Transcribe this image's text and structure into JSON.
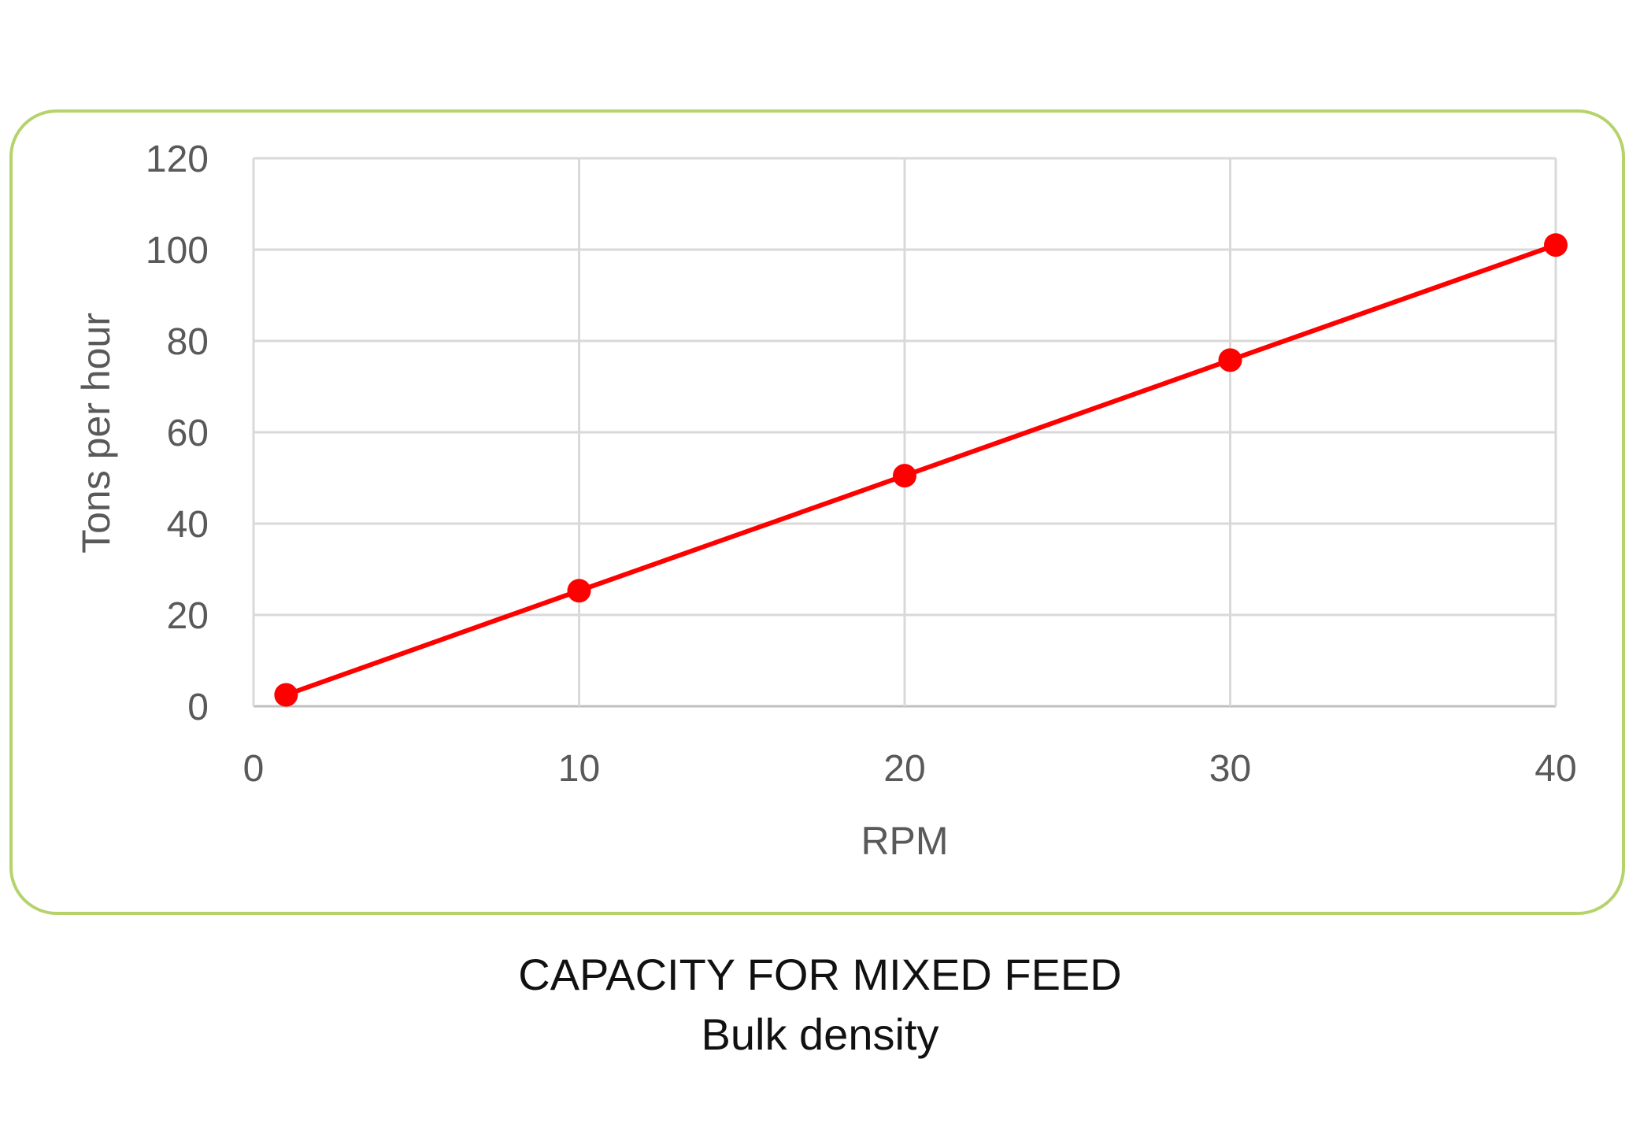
{
  "chart_data": {
    "type": "line",
    "title": "",
    "xlabel": "RPM",
    "ylabel": "Tons per hour",
    "xlim": [
      0,
      40
    ],
    "ylim": [
      0,
      120
    ],
    "x_ticks": [
      0,
      10,
      20,
      30,
      40
    ],
    "y_ticks": [
      0,
      20,
      40,
      60,
      80,
      100,
      120
    ],
    "grid": true,
    "series": [
      {
        "x": [
          1,
          10,
          20,
          30,
          40
        ],
        "values": [
          2.5,
          25.3,
          50.5,
          75.8,
          101
        ],
        "color": "#ff0000"
      }
    ]
  },
  "caption": {
    "line1": "CAPACITY FOR MIXED FEED",
    "line2": "Bulk density"
  },
  "colors": {
    "frame_border": "#b5d36a",
    "gridline": "#d9d9d9",
    "tick_text": "#595959",
    "series": "#ff0000"
  }
}
